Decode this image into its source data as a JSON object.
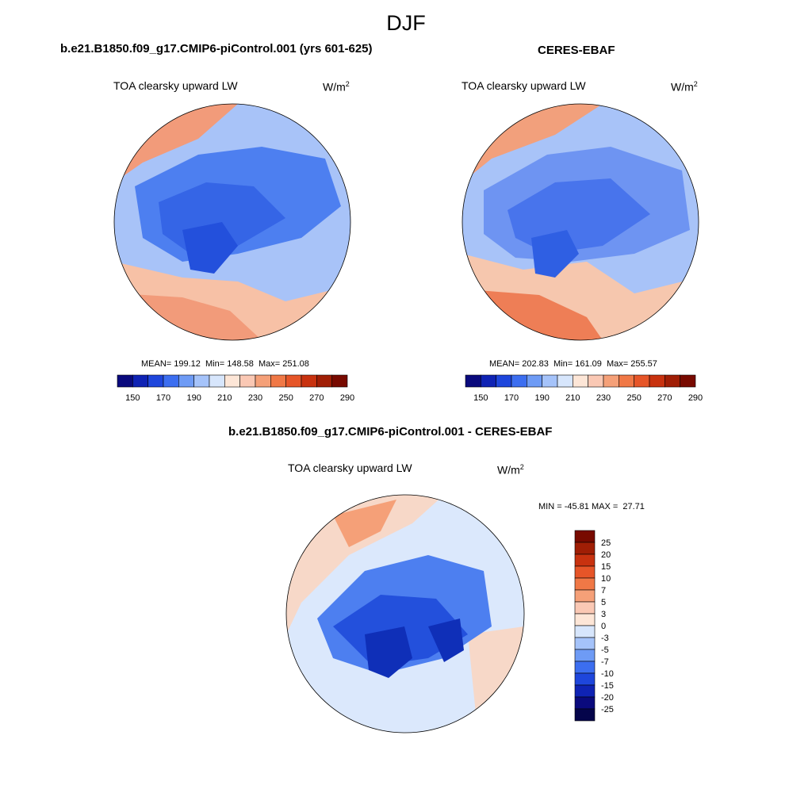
{
  "season": "DJF",
  "units": {
    "base": "W/m",
    "exp": "2"
  },
  "panels": {
    "model": {
      "title": "b.e21.B1850.f09_g17.CMIP6-piControl.001 (yrs 601-625)",
      "variable": "TOA clearsky upward LW",
      "stats": "MEAN= 199.12  Min= 148.58  Max= 251.08",
      "mean": 199.12,
      "min": 148.58,
      "max": 251.08
    },
    "obs": {
      "title": "CERES-EBAF",
      "variable": "TOA clearsky upward LW",
      "stats": "MEAN= 202.83  Min= 161.09  Max= 255.57",
      "mean": 202.83,
      "min": 161.09,
      "max": 255.57
    },
    "diff": {
      "title": "b.e21.B1850.f09_g17.CMIP6-piControl.001 - CERES-EBAF",
      "variable": "TOA clearsky upward LW",
      "stats": "MIN = -45.81 MAX =  27.71",
      "min": -45.81,
      "max": 27.71
    }
  },
  "abs_colorbar": {
    "labels": [
      "150",
      "170",
      "190",
      "210",
      "230",
      "250",
      "270",
      "290"
    ],
    "colors": [
      "#0a0a7d",
      "#0f23b4",
      "#1e46dc",
      "#3c6ef0",
      "#6e9bf5",
      "#a5c3fa",
      "#d7e6fc",
      "#fde6d7",
      "#fac8b4",
      "#f5a078",
      "#f07846",
      "#e65528",
      "#c8320f",
      "#a01e05",
      "#780a00"
    ]
  },
  "diff_colorbar": {
    "labels": [
      "25",
      "20",
      "15",
      "10",
      "7",
      "5",
      "3",
      "0",
      "-3",
      "-5",
      "-7",
      "-10",
      "-15",
      "-20",
      "-25"
    ],
    "colors": [
      "#780a00",
      "#a01e05",
      "#c8320f",
      "#e65528",
      "#f07846",
      "#f5a078",
      "#fac8b4",
      "#fde6d7",
      "#d7e6fc",
      "#a5c3fa",
      "#6e9bf5",
      "#3c6ef0",
      "#1e46dc",
      "#0f23b4",
      "#0a0a7d",
      "#05054b"
    ]
  },
  "maps": {
    "model_palette": [
      "#2350dc",
      "#3565e6",
      "#4d7ff0",
      "#7aa3f5",
      "#b5cffa",
      "#f7c1a6",
      "#f29b7a"
    ],
    "obs_palette": [
      "#2f5fe3",
      "#4874ec",
      "#6e94f2",
      "#a8c3f8",
      "#f6c7ae",
      "#f2a07c",
      "#ee7e56"
    ],
    "diff_palette": [
      "#0f2fb8",
      "#2350dc",
      "#4d7ff0",
      "#a5c3fa",
      "#dbe8fc",
      "#f7d8c8",
      "#f5a078",
      "#ee6e40"
    ]
  }
}
